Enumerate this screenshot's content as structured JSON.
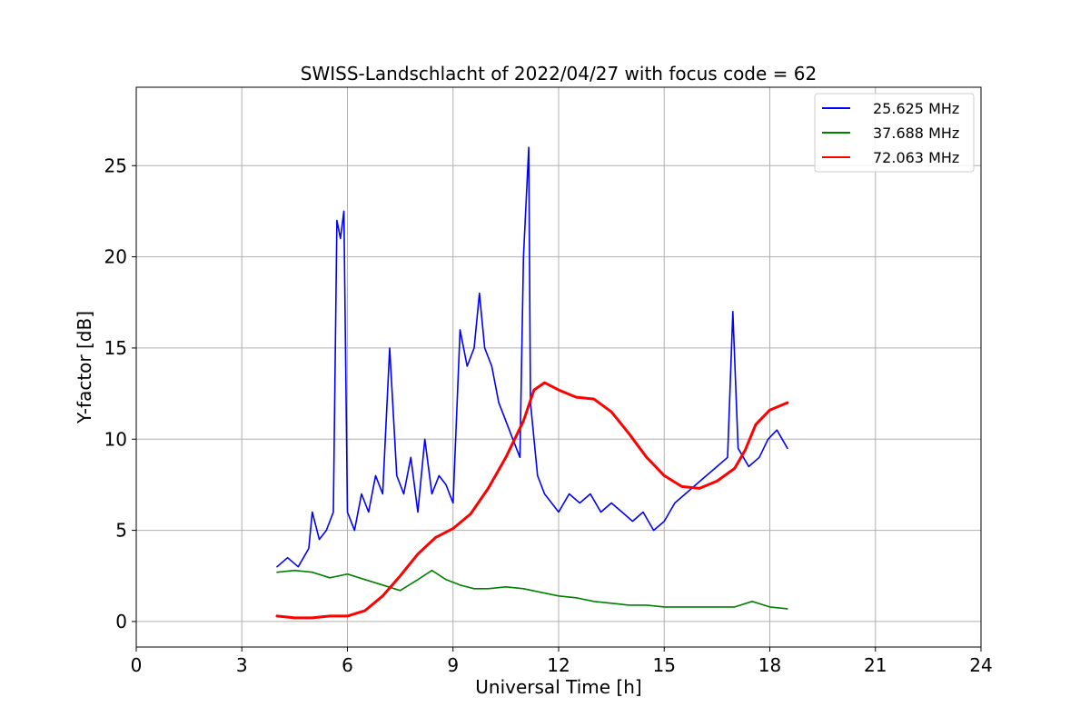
{
  "chart_data": {
    "type": "line",
    "title": "SWISS-Landschlacht of 2022/04/27 with focus code = 62",
    "xlabel": "Universal Time [h]",
    "ylabel": "Y-factor [dB]",
    "xlim": [
      0,
      24
    ],
    "ylim": [
      -1.4,
      29.3
    ],
    "xticks": [
      0,
      3,
      6,
      9,
      12,
      15,
      18,
      21,
      24
    ],
    "xtick_labels": [
      "0",
      "3",
      "6",
      "9",
      "12",
      "15",
      "18",
      "21",
      "24"
    ],
    "yticks": [
      0,
      5,
      10,
      15,
      20,
      25
    ],
    "ytick_labels": [
      "0",
      "5",
      "10",
      "15",
      "20",
      "25"
    ],
    "grid": true,
    "legend_position": "top-right",
    "series": [
      {
        "name": "25.625 MHz",
        "color": "#0000ff",
        "x": [
          4.0,
          4.3,
          4.6,
          4.9,
          5.0,
          5.2,
          5.4,
          5.6,
          5.7,
          5.8,
          5.9,
          6.0,
          6.2,
          6.4,
          6.6,
          6.8,
          7.0,
          7.2,
          7.4,
          7.6,
          7.8,
          8.0,
          8.2,
          8.4,
          8.6,
          8.8,
          9.0,
          9.2,
          9.4,
          9.6,
          9.75,
          9.9,
          10.1,
          10.3,
          10.5,
          10.7,
          10.9,
          11.0,
          11.15,
          11.2,
          11.4,
          11.6,
          11.8,
          12.0,
          12.3,
          12.6,
          12.9,
          13.2,
          13.5,
          13.8,
          14.1,
          14.4,
          14.7,
          15.0,
          15.3,
          15.6,
          15.9,
          16.2,
          16.5,
          16.8,
          16.95,
          17.1,
          17.4,
          17.7,
          17.95,
          18.2,
          18.5
        ],
        "y": [
          3.0,
          3.5,
          3.0,
          4.0,
          6.0,
          4.5,
          5.0,
          6.0,
          22.0,
          21.0,
          22.5,
          6.0,
          5.0,
          7.0,
          6.0,
          8.0,
          7.0,
          15.0,
          8.0,
          7.0,
          9.0,
          6.0,
          10.0,
          7.0,
          8.0,
          7.5,
          6.5,
          16.0,
          14.0,
          15.0,
          18.0,
          15.0,
          14.0,
          12.0,
          11.0,
          10.0,
          9.0,
          20.0,
          26.0,
          12.0,
          8.0,
          7.0,
          6.5,
          6.0,
          7.0,
          6.5,
          7.0,
          6.0,
          6.5,
          6.0,
          5.5,
          6.0,
          5.0,
          5.5,
          6.5,
          7.0,
          7.5,
          8.0,
          8.5,
          9.0,
          17.0,
          9.5,
          8.5,
          9.0,
          10.0,
          10.5,
          9.5
        ]
      },
      {
        "name": "37.688 MHz",
        "color": "#008000",
        "x": [
          4.0,
          4.5,
          5.0,
          5.5,
          6.0,
          6.5,
          7.0,
          7.5,
          8.0,
          8.4,
          8.8,
          9.2,
          9.6,
          10.0,
          10.5,
          11.0,
          11.5,
          12.0,
          12.5,
          13.0,
          13.5,
          14.0,
          14.5,
          15.0,
          15.5,
          16.0,
          16.5,
          17.0,
          17.5,
          18.0,
          18.5
        ],
        "y": [
          2.7,
          2.8,
          2.7,
          2.4,
          2.6,
          2.3,
          2.0,
          1.7,
          2.3,
          2.8,
          2.3,
          2.0,
          1.8,
          1.8,
          1.9,
          1.8,
          1.6,
          1.4,
          1.3,
          1.1,
          1.0,
          0.9,
          0.9,
          0.8,
          0.8,
          0.8,
          0.8,
          0.8,
          1.1,
          0.8,
          0.7
        ]
      },
      {
        "name": "72.063 MHz",
        "color": "#ff0000",
        "x": [
          4.0,
          4.5,
          5.0,
          5.5,
          6.0,
          6.5,
          7.0,
          7.5,
          8.0,
          8.5,
          9.0,
          9.5,
          10.0,
          10.5,
          11.0,
          11.3,
          11.6,
          12.0,
          12.5,
          13.0,
          13.5,
          14.0,
          14.5,
          15.0,
          15.5,
          16.0,
          16.5,
          17.0,
          17.3,
          17.6,
          18.0,
          18.5
        ],
        "y": [
          0.3,
          0.2,
          0.2,
          0.3,
          0.3,
          0.6,
          1.4,
          2.5,
          3.7,
          4.6,
          5.1,
          5.9,
          7.3,
          9.0,
          11.0,
          12.7,
          13.1,
          12.7,
          12.3,
          12.2,
          11.5,
          10.3,
          9.0,
          8.0,
          7.4,
          7.3,
          7.7,
          8.4,
          9.4,
          10.8,
          11.6,
          12.0
        ]
      }
    ]
  }
}
